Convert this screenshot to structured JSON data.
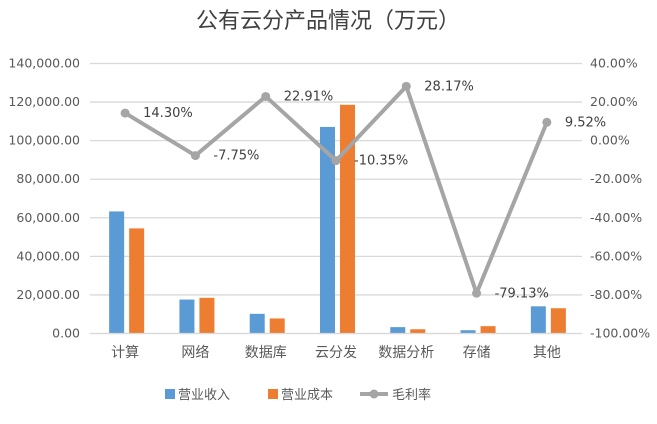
{
  "chart_data": {
    "type": "bar+line",
    "title": "公有云分产品情况（万元）",
    "categories": [
      "计算",
      "网络",
      "数据库",
      "云分发",
      "数据分析",
      "存储",
      "其他"
    ],
    "series": [
      {
        "name": "营业收入",
        "type": "bar",
        "axis": "left",
        "color": "#5B9BD5",
        "values": [
          63300,
          17600,
          10200,
          107100,
          3300,
          1700,
          14100
        ]
      },
      {
        "name": "营业成本",
        "type": "bar",
        "axis": "left",
        "color": "#ED7D31",
        "values": [
          54500,
          18500,
          7800,
          118600,
          2200,
          3800,
          13100
        ]
      },
      {
        "name": "毛利率",
        "type": "line",
        "axis": "right",
        "color": "#A5A5A5",
        "values": [
          14.3,
          -7.75,
          22.91,
          -10.35,
          28.17,
          -79.13,
          9.52
        ],
        "labels": [
          "14.30%",
          "-7.75%",
          "22.91%",
          "-10.35%",
          "28.17%",
          "-79.13%",
          "9.52%"
        ]
      }
    ],
    "left_axis": {
      "ylim": [
        0,
        140000
      ],
      "ticks": [
        "0.00",
        "20,000.00",
        "40,000.00",
        "60,000.00",
        "80,000.00",
        "100,000.00",
        "120,000.00",
        "140,000.00"
      ]
    },
    "right_axis": {
      "ylim": [
        -100,
        40
      ],
      "ticks": [
        "-100.00%",
        "-80.00%",
        "-60.00%",
        "-40.00%",
        "-20.00%",
        "0.00%",
        "20.00%",
        "40.00%"
      ]
    },
    "grid": true,
    "legend": "bottom"
  }
}
